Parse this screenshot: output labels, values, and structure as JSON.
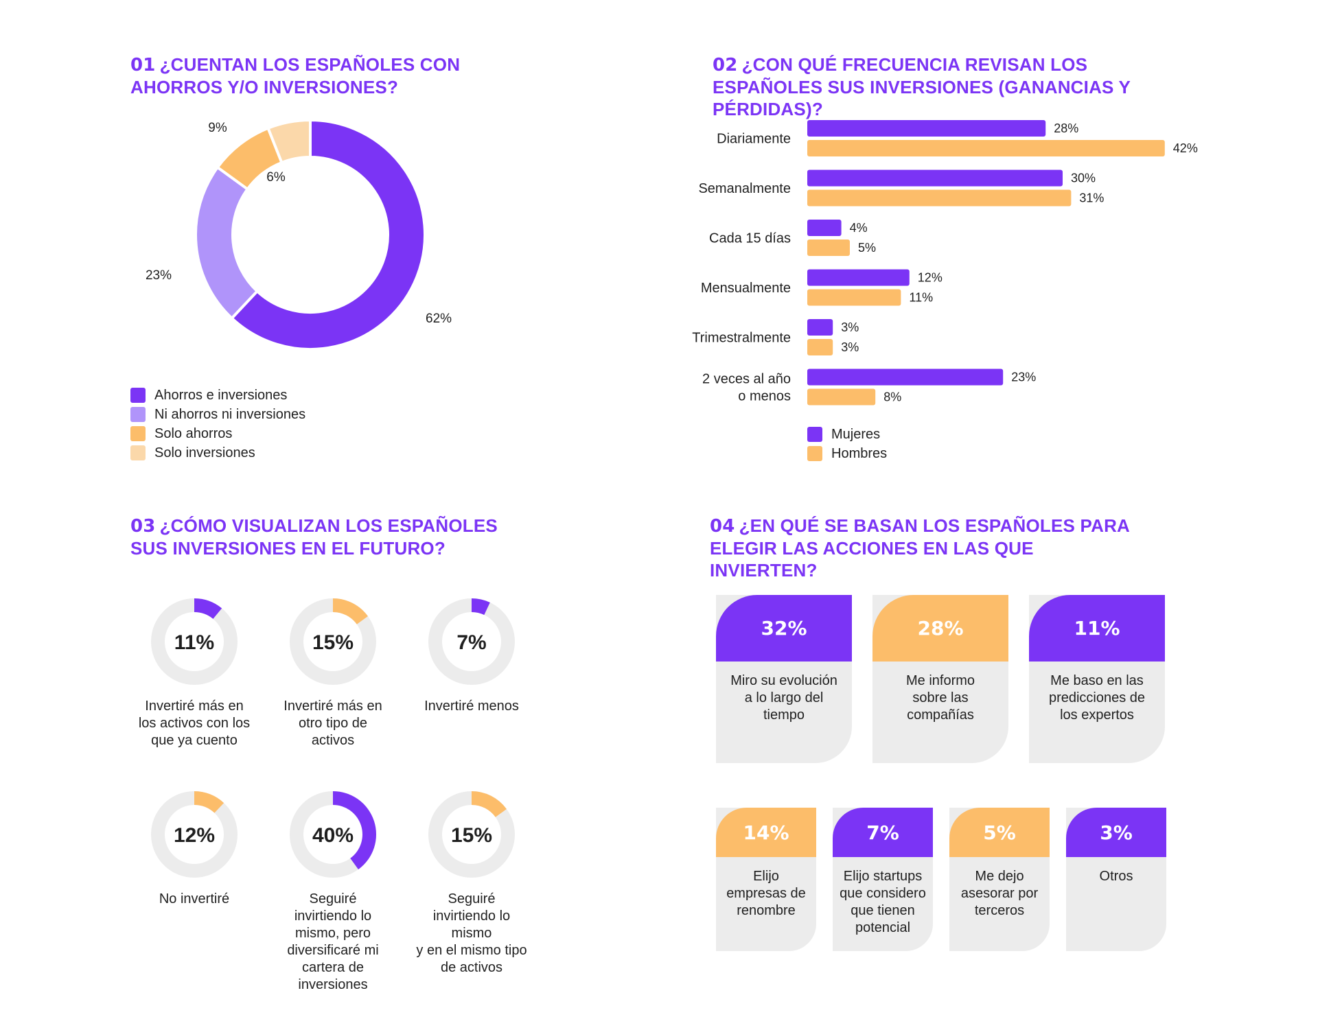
{
  "colors": {
    "purple": "#7b34f5",
    "lavender": "#b094fa",
    "orange": "#fcbd6a",
    "peach": "#fbd8aa",
    "track": "#ececec",
    "title": "#7b34f5"
  },
  "q1": {
    "number": "01",
    "title": "¿CUENTAN LOS ESPAÑOLES CON AHORROS Y/O INVERSIONES?",
    "legend": [
      "Ahorros e inversiones",
      "Ni ahorros ni inversiones",
      "Solo ahorros",
      "Solo inversiones"
    ]
  },
  "q2": {
    "number": "02",
    "title": "¿CON QUÉ FRECUENCIA REVISAN LOS ESPAÑOLES SUS INVERSIONES (GANANCIAS Y PÉRDIDAS)?",
    "legend": [
      "Mujeres",
      "Hombres"
    ]
  },
  "q3": {
    "number": "03",
    "title": "¿CÓMO VISUALIZAN LOS ESPAÑOLES SUS INVERSIONES EN EL FUTURO?"
  },
  "q4": {
    "number": "04",
    "title": "¿EN QUÉ SE BASAN LOS ESPAÑOLES PARA ELEGIR LAS ACCIONES EN LAS QUE INVIERTEN?"
  },
  "chart_data": [
    {
      "type": "pie",
      "variant": "donut",
      "labels": [
        "Ahorros e inversiones",
        "Ni ahorros ni inversiones",
        "Solo ahorros",
        "Solo inversiones"
      ],
      "values": [
        62,
        23,
        9,
        6
      ],
      "value_labels": [
        "62%",
        "23%",
        "9%",
        "6%"
      ],
      "colors": [
        "#7b34f5",
        "#b094fa",
        "#fcbd6a",
        "#fbd8aa"
      ],
      "legend": "bottom-left"
    },
    {
      "type": "bar",
      "orientation": "horizontal",
      "categories": [
        "Diariamente",
        "Semanalmente",
        "Cada 15 días",
        "Mensualmente",
        "Trimestralmente",
        "2 veces al año\no menos"
      ],
      "series": [
        {
          "name": "Mujeres",
          "values": [
            28,
            30,
            4,
            12,
            3,
            23
          ],
          "labels": [
            "28%",
            "30%",
            "4%",
            "12%",
            "3%",
            "23%"
          ],
          "color": "#7b34f5"
        },
        {
          "name": "Hombres",
          "values": [
            42,
            31,
            5,
            11,
            3,
            8
          ],
          "labels": [
            "42%",
            "31%",
            "5%",
            "11%",
            "3%",
            "8%"
          ],
          "color": "#fcbd6a"
        }
      ],
      "xlim": [
        0,
        42
      ],
      "legend": "bottom-left"
    },
    {
      "type": "pie",
      "variant": "progress-rings",
      "items": [
        {
          "value": 11,
          "text": "11%",
          "label": "Invertiré más en\nlos activos con los\nque ya cuento",
          "color": "#7b34f5"
        },
        {
          "value": 15,
          "text": "15%",
          "label": "Invertiré más en\notro tipo de\nactivos",
          "color": "#fcbd6a"
        },
        {
          "value": 7,
          "text": "7%",
          "label": "Invertiré menos",
          "color": "#7b34f5"
        },
        {
          "value": 12,
          "text": "12%",
          "label": "No invertiré",
          "color": "#fcbd6a"
        },
        {
          "value": 40,
          "text": "40%",
          "label": "Seguiré\ninvirtiendo lo\nmismo, pero\ndiversificaré mi\ncartera de\ninversiones",
          "color": "#7b34f5"
        },
        {
          "value": 15,
          "text": "15%",
          "label": "Seguiré\ninvirtiendo lo\nmismo\ny en el mismo tipo\nde activos",
          "color": "#fcbd6a"
        }
      ]
    },
    {
      "type": "table",
      "variant": "cards",
      "items": [
        {
          "value": 32,
          "text": "32%",
          "label": "Miro su evolución\na lo largo del\ntiempo",
          "color": "#7b34f5"
        },
        {
          "value": 28,
          "text": "28%",
          "label": "Me informo\nsobre las\ncompañías",
          "color": "#fcbd6a"
        },
        {
          "value": 11,
          "text": "11%",
          "label": "Me baso en las\npredicciones de\nlos expertos",
          "color": "#7b34f5"
        },
        {
          "value": 14,
          "text": "14%",
          "label": "Elijo\nempresas de\nrenombre",
          "color": "#fcbd6a"
        },
        {
          "value": 7,
          "text": "7%",
          "label": "Elijo startups\nque considero\nque tienen\npotencial",
          "color": "#7b34f5"
        },
        {
          "value": 5,
          "text": "5%",
          "label": "Me dejo\nasesorar por\nterceros",
          "color": "#fcbd6a"
        },
        {
          "value": 3,
          "text": "3%",
          "label": "Otros",
          "color": "#7b34f5"
        }
      ]
    }
  ]
}
